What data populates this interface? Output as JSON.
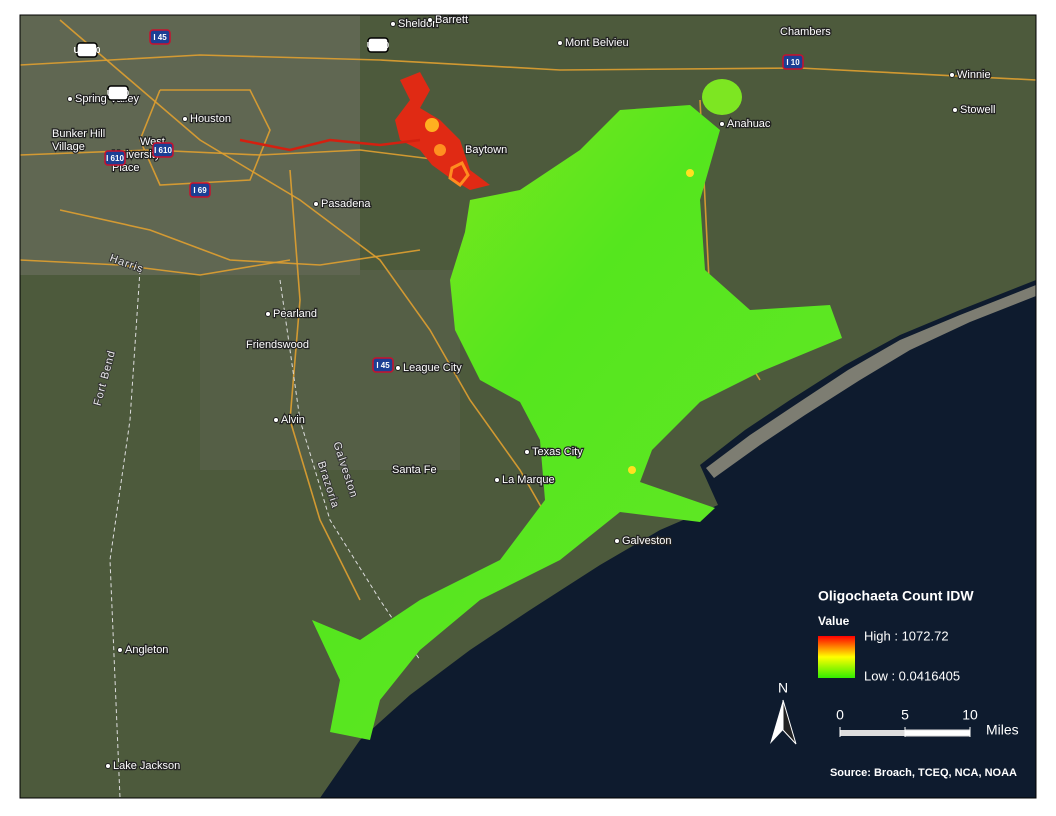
{
  "map": {
    "legend": {
      "title": "Oligochaeta Count IDW",
      "field": "Value",
      "high_label": "High : 1072.72",
      "low_label": "Low : 0.0416405"
    },
    "north_arrow": "N",
    "scale_bar": {
      "ticks": [
        0,
        5,
        10
      ],
      "unit": "Miles"
    },
    "source": "Source: Broach, TCEQ, NCA, NOAA",
    "places": [
      "Sheldon",
      "Barrett",
      "Mont Belvieu",
      "Chambers",
      "Winnie",
      "Stowell",
      "Anahuac",
      "Baytown",
      "Houston",
      "Pasadena",
      "Pearland",
      "Friendswood",
      "League City",
      "Alvin",
      "Santa Fe",
      "Texas City",
      "La Marque",
      "Galveston",
      "Angleton",
      "Lake Jackson",
      "Spring Valley",
      "Bunker Hill",
      "Village",
      "West",
      "University",
      "Place"
    ],
    "counties": [
      "Harris",
      "Fort Bend",
      "Galveston",
      "Brazoria"
    ],
    "highways": [
      "I 45",
      "I 10",
      "I 610",
      "I 69",
      "I 610",
      "I 45",
      "US 90",
      "US 290",
      "US 90"
    ]
  }
}
